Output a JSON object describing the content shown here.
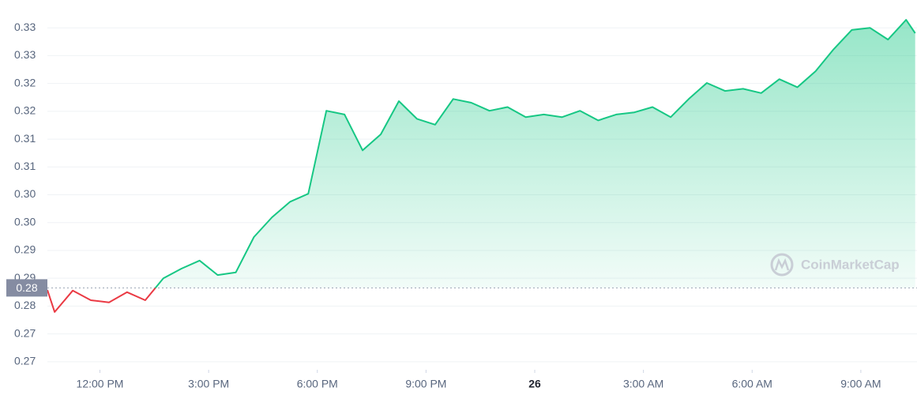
{
  "chart_data": {
    "type": "line",
    "x": [
      10.55,
      10.75,
      11.25,
      11.75,
      12.25,
      12.75,
      13.25,
      13.75,
      14.25,
      14.75,
      15.25,
      15.75,
      16.25,
      16.75,
      17.25,
      17.75,
      18.25,
      18.75,
      19.25,
      19.75,
      20.25,
      20.75,
      21.25,
      21.75,
      22.25,
      22.75,
      23.25,
      23.75,
      24.25,
      24.75,
      25.25,
      25.75,
      26.25,
      26.75,
      27.25,
      27.75,
      28.25,
      28.75,
      29.25,
      29.75,
      30.25,
      30.75,
      31.25,
      31.75,
      32.25,
      32.75,
      33.25,
      33.75,
      34.25,
      34.5
    ],
    "values": [
      0.2834,
      0.2793,
      0.2833,
      0.2815,
      0.2811,
      0.283,
      0.2815,
      0.2856,
      0.2874,
      0.2889,
      0.2862,
      0.2867,
      0.2933,
      0.297,
      0.2999,
      0.3014,
      0.3169,
      0.3162,
      0.3095,
      0.3125,
      0.3187,
      0.3154,
      0.3143,
      0.3191,
      0.3184,
      0.3169,
      0.3176,
      0.3157,
      0.3162,
      0.3157,
      0.3169,
      0.3151,
      0.3162,
      0.3166,
      0.3176,
      0.3157,
      0.3191,
      0.3221,
      0.3206,
      0.321,
      0.3202,
      0.3228,
      0.3213,
      0.3243,
      0.3284,
      0.332,
      0.3324,
      0.3302,
      0.3339,
      0.3314
    ],
    "up_color": "#16c784",
    "down_color": "#ea3943",
    "reference": {
      "value": 0.2838,
      "label": "0.28"
    },
    "xlim": [
      10.55,
      34.55
    ],
    "xticks": [
      {
        "value": 12,
        "label": "12:00 PM"
      },
      {
        "value": 15,
        "label": "3:00 PM"
      },
      {
        "value": 18,
        "label": "6:00 PM"
      },
      {
        "value": 21,
        "label": "9:00 PM"
      },
      {
        "value": 24,
        "label": "26"
      },
      {
        "value": 27,
        "label": "3:00 AM"
      },
      {
        "value": 30,
        "label": "6:00 AM"
      },
      {
        "value": 33,
        "label": "9:00 AM"
      }
    ],
    "ylim": [
      0.2685,
      0.3376
    ],
    "yticks": [
      {
        "value": 0.27,
        "label": "0.27"
      },
      {
        "value": 0.2752,
        "label": "0.27"
      },
      {
        "value": 0.2804,
        "label": "0.28"
      },
      {
        "value": 0.2856,
        "label": "0.29"
      },
      {
        "value": 0.2908,
        "label": "0.29"
      },
      {
        "value": 0.296,
        "label": "0.30"
      },
      {
        "value": 0.3012,
        "label": "0.30"
      },
      {
        "value": 0.3064,
        "label": "0.31"
      },
      {
        "value": 0.3116,
        "label": "0.31"
      },
      {
        "value": 0.3168,
        "label": "0.32"
      },
      {
        "value": 0.322,
        "label": "0.32"
      },
      {
        "value": 0.3272,
        "label": "0.33"
      },
      {
        "value": 0.3324,
        "label": "0.33"
      }
    ],
    "grid": true,
    "watermark": "CoinMarketCap"
  }
}
